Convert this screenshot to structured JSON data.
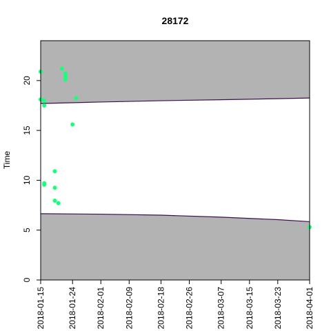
{
  "chart_data": {
    "type": "scatter",
    "title": "28172",
    "xlabel": "",
    "ylabel": "Time",
    "xlim": [
      "2018-01-15",
      "2018-04-01"
    ],
    "ylim": [
      0,
      24
    ],
    "x_ticks": [
      "2018-01-15",
      "2018-01-24",
      "2018-02-01",
      "2018-02-09",
      "2018-02-18",
      "2018-02-26",
      "2018-03-07",
      "2018-03-15",
      "2018-03-23",
      "2018-04-01"
    ],
    "y_ticks": [
      "0",
      "5",
      "10",
      "15",
      "20"
    ],
    "colors": {
      "band": "#b3b3b3",
      "curve": "#3b0f4f",
      "points": "#1aff7a"
    },
    "upper_curve": [
      {
        "x": "2018-01-15",
        "y": 17.7
      },
      {
        "x": "2018-02-01",
        "y": 17.85
      },
      {
        "x": "2018-02-18",
        "y": 17.98
      },
      {
        "x": "2018-03-07",
        "y": 18.08
      },
      {
        "x": "2018-03-23",
        "y": 18.18
      },
      {
        "x": "2018-04-01",
        "y": 18.25
      }
    ],
    "lower_curve": [
      {
        "x": "2018-01-15",
        "y": 6.65
      },
      {
        "x": "2018-02-01",
        "y": 6.6
      },
      {
        "x": "2018-02-18",
        "y": 6.5
      },
      {
        "x": "2018-03-07",
        "y": 6.3
      },
      {
        "x": "2018-03-23",
        "y": 6.05
      },
      {
        "x": "2018-04-01",
        "y": 5.85
      }
    ],
    "points": [
      {
        "x": "2018-01-15",
        "y": 20.9
      },
      {
        "x": "2018-01-15",
        "y": 18.1
      },
      {
        "x": "2018-01-16",
        "y": 18.0
      },
      {
        "x": "2018-01-16",
        "y": 17.5
      },
      {
        "x": "2018-01-16",
        "y": 9.7
      },
      {
        "x": "2018-01-16",
        "y": 9.55
      },
      {
        "x": "2018-01-19",
        "y": 10.9
      },
      {
        "x": "2018-01-19",
        "y": 9.25
      },
      {
        "x": "2018-01-19",
        "y": 7.95
      },
      {
        "x": "2018-01-20",
        "y": 7.7
      },
      {
        "x": "2018-01-21",
        "y": 21.2
      },
      {
        "x": "2018-01-22",
        "y": 20.7
      },
      {
        "x": "2018-01-22",
        "y": 20.4
      },
      {
        "x": "2018-01-22",
        "y": 20.1
      },
      {
        "x": "2018-01-24",
        "y": 15.6
      },
      {
        "x": "2018-01-25",
        "y": 18.25
      },
      {
        "x": "2018-04-01",
        "y": 5.3
      }
    ]
  }
}
